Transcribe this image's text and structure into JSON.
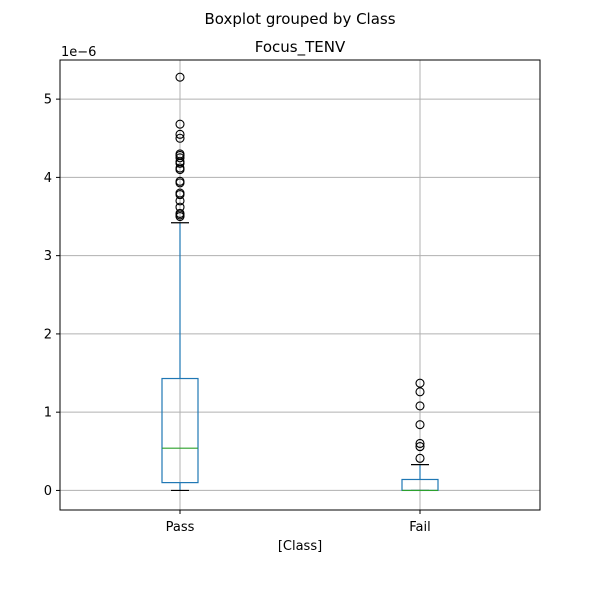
{
  "chart_data": {
    "type": "box",
    "suptitle": "Boxplot grouped by Class",
    "title": "Focus_TENV",
    "xlabel": "[Class]",
    "ylabel": "",
    "y_multiplier_label": "1e−6",
    "categories": [
      "Pass",
      "Fail"
    ],
    "ylim": [
      -0.25,
      5.5
    ],
    "yticks": [
      0,
      1,
      2,
      3,
      4,
      5
    ],
    "grid": true,
    "colors": {
      "box": "#1f77b4",
      "median": "#2ca02c",
      "whisker": "#1f77b4",
      "cap": "#000000",
      "flier": "#000000",
      "grid": "#b0b0b0"
    },
    "boxes": [
      {
        "name": "Pass",
        "whisker_low": 0.0,
        "q1": 0.1,
        "median": 0.54,
        "q3": 1.43,
        "whisker_high": 3.42,
        "fliers": [
          3.5,
          3.52,
          3.54,
          3.62,
          3.7,
          3.78,
          3.8,
          3.93,
          3.95,
          4.1,
          4.12,
          4.18,
          4.2,
          4.25,
          4.28,
          4.3,
          4.5,
          4.55,
          4.68,
          5.28
        ]
      },
      {
        "name": "Fail",
        "whisker_low": 0.0,
        "q1": 0.0,
        "median": 0.0,
        "q3": 0.14,
        "whisker_high": 0.33,
        "fliers": [
          0.41,
          0.56,
          0.6,
          0.84,
          1.08,
          1.26,
          1.37
        ]
      }
    ]
  }
}
